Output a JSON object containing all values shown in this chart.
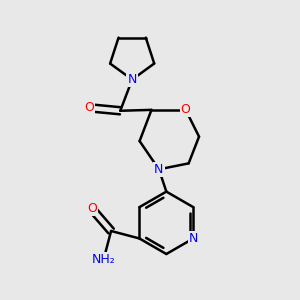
{
  "bg_color": "#e8e8e8",
  "bond_color": "#000000",
  "N_color": "#0000ff",
  "O_color": "#ff0000",
  "line_width": 1.8,
  "figsize": [
    3.0,
    3.0
  ],
  "dpi": 100,
  "xlim": [
    0.0,
    1.0
  ],
  "ylim": [
    0.0,
    1.0
  ]
}
